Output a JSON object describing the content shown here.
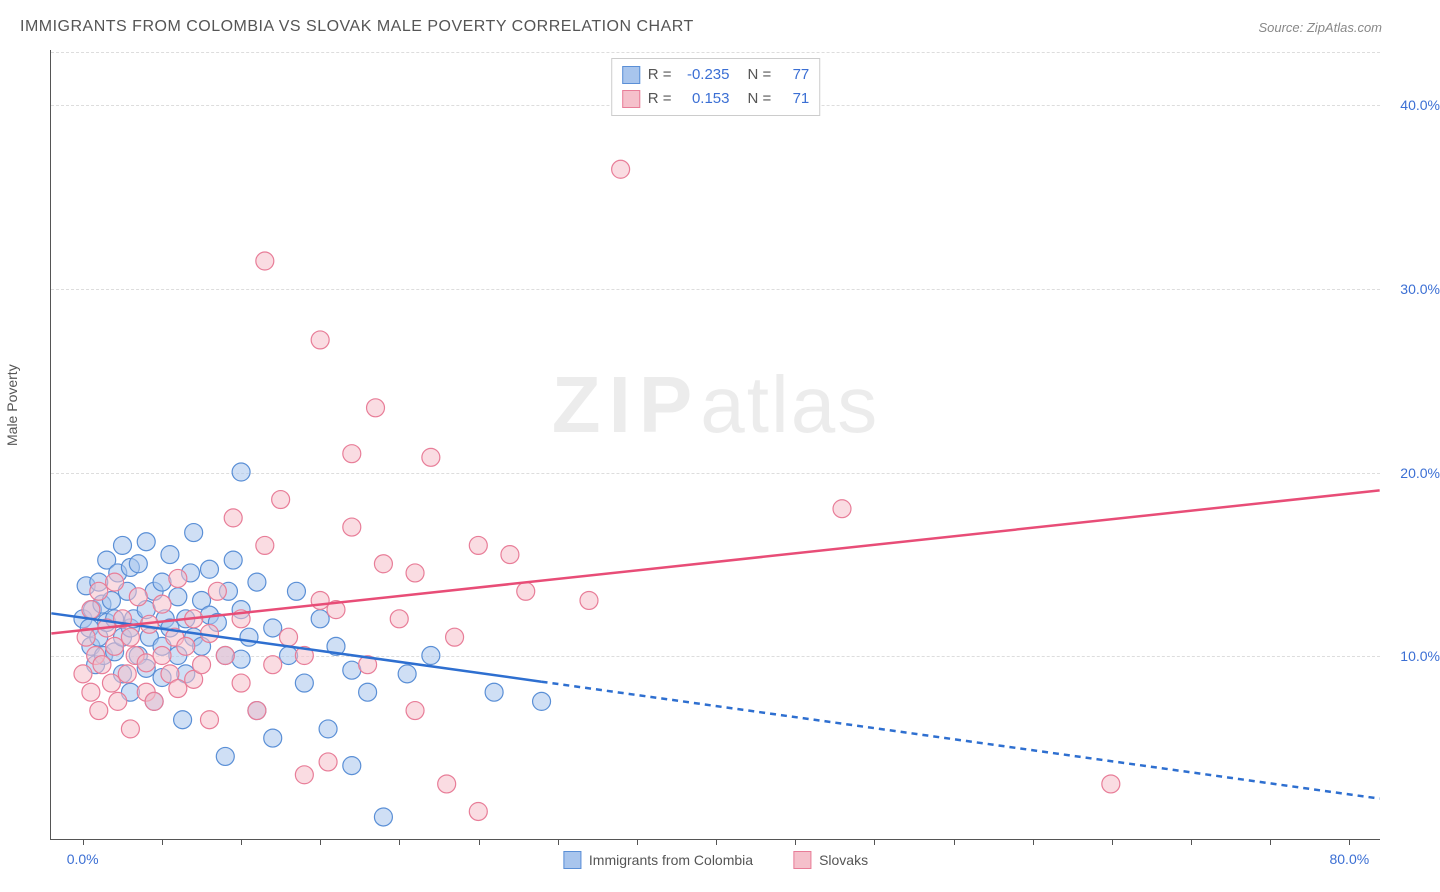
{
  "title": "IMMIGRANTS FROM COLOMBIA VS SLOVAK MALE POVERTY CORRELATION CHART",
  "source": "Source: ZipAtlas.com",
  "ylabel": "Male Poverty",
  "watermark_a": "ZIP",
  "watermark_b": "atlas",
  "chart": {
    "type": "scatter",
    "xlim": [
      -2,
      82
    ],
    "ylim": [
      0,
      43
    ],
    "xticks": [
      0,
      5,
      10,
      15,
      20,
      25,
      30,
      35,
      40,
      45,
      50,
      55,
      60,
      65,
      70,
      75,
      80
    ],
    "xtick_labels": {
      "0": "0.0%",
      "80": "80.0%"
    },
    "yticks": [
      10,
      20,
      30,
      40
    ],
    "ytick_labels": {
      "10": "10.0%",
      "20": "20.0%",
      "30": "30.0%",
      "40": "40.0%"
    },
    "background_color": "#ffffff",
    "grid_color": "#dddddd",
    "axis_color": "#555555",
    "marker_radius": 9,
    "marker_opacity": 0.55,
    "series": [
      {
        "name": "Immigrants from Colombia",
        "color_fill": "#a8c5ed",
        "color_stroke": "#5a8fd6",
        "trend": {
          "x1": -2,
          "y1": 12.3,
          "x2": 82,
          "y2": 2.2,
          "solid_until_x": 29,
          "color": "#2e6fd0",
          "width": 2.5,
          "dash": "6,5"
        },
        "points": [
          [
            0,
            12
          ],
          [
            0.2,
            13.8
          ],
          [
            0.4,
            11.5
          ],
          [
            0.5,
            10.5
          ],
          [
            0.6,
            12.5
          ],
          [
            0.8,
            9.5
          ],
          [
            1,
            14
          ],
          [
            1,
            11
          ],
          [
            1.2,
            12.8
          ],
          [
            1.3,
            10
          ],
          [
            1.5,
            11.8
          ],
          [
            1.5,
            15.2
          ],
          [
            1.8,
            13
          ],
          [
            2,
            10.2
          ],
          [
            2,
            12
          ],
          [
            2.2,
            14.5
          ],
          [
            2.5,
            9
          ],
          [
            2.5,
            11
          ],
          [
            2.5,
            16
          ],
          [
            2.8,
            13.5
          ],
          [
            3,
            8
          ],
          [
            3,
            11.5
          ],
          [
            3,
            14.8
          ],
          [
            3.2,
            12
          ],
          [
            3.5,
            10
          ],
          [
            3.5,
            15
          ],
          [
            4,
            9.3
          ],
          [
            4,
            12.5
          ],
          [
            4,
            16.2
          ],
          [
            4.2,
            11
          ],
          [
            4.5,
            7.5
          ],
          [
            4.5,
            13.5
          ],
          [
            5,
            8.8
          ],
          [
            5,
            10.5
          ],
          [
            5,
            14
          ],
          [
            5.2,
            12
          ],
          [
            5.5,
            11.5
          ],
          [
            5.5,
            15.5
          ],
          [
            6,
            10
          ],
          [
            6,
            13.2
          ],
          [
            6.3,
            6.5
          ],
          [
            6.5,
            9
          ],
          [
            6.5,
            12
          ],
          [
            6.8,
            14.5
          ],
          [
            7,
            11
          ],
          [
            7,
            16.7
          ],
          [
            7.5,
            10.5
          ],
          [
            7.5,
            13
          ],
          [
            8,
            12.2
          ],
          [
            8,
            14.7
          ],
          [
            8.5,
            11.8
          ],
          [
            9,
            4.5
          ],
          [
            9,
            10
          ],
          [
            9.2,
            13.5
          ],
          [
            9.5,
            15.2
          ],
          [
            10,
            9.8
          ],
          [
            10,
            12.5
          ],
          [
            10,
            20
          ],
          [
            10.5,
            11
          ],
          [
            11,
            7
          ],
          [
            11,
            14
          ],
          [
            12,
            5.5
          ],
          [
            12,
            11.5
          ],
          [
            13,
            10
          ],
          [
            13.5,
            13.5
          ],
          [
            14,
            8.5
          ],
          [
            15,
            12
          ],
          [
            15.5,
            6
          ],
          [
            16,
            10.5
          ],
          [
            17,
            4
          ],
          [
            17,
            9.2
          ],
          [
            18,
            8
          ],
          [
            19,
            1.2
          ],
          [
            20.5,
            9
          ],
          [
            22,
            10
          ],
          [
            26,
            8
          ],
          [
            29,
            7.5
          ]
        ]
      },
      {
        "name": "Slovaks",
        "color_fill": "#f5c0cb",
        "color_stroke": "#e87d98",
        "trend": {
          "x1": -2,
          "y1": 11.2,
          "x2": 82,
          "y2": 19.0,
          "solid_until_x": 82,
          "color": "#e84d77",
          "width": 2.5,
          "dash": ""
        },
        "points": [
          [
            0,
            9
          ],
          [
            0.2,
            11
          ],
          [
            0.5,
            8
          ],
          [
            0.5,
            12.5
          ],
          [
            0.8,
            10
          ],
          [
            1,
            7
          ],
          [
            1,
            13.5
          ],
          [
            1.2,
            9.5
          ],
          [
            1.5,
            11.5
          ],
          [
            1.8,
            8.5
          ],
          [
            2,
            10.5
          ],
          [
            2,
            14
          ],
          [
            2.2,
            7.5
          ],
          [
            2.5,
            12
          ],
          [
            2.8,
            9
          ],
          [
            3,
            6
          ],
          [
            3,
            11
          ],
          [
            3.3,
            10
          ],
          [
            3.5,
            13.2
          ],
          [
            4,
            8
          ],
          [
            4,
            9.6
          ],
          [
            4.2,
            11.7
          ],
          [
            4.5,
            7.5
          ],
          [
            5,
            10
          ],
          [
            5,
            12.8
          ],
          [
            5.5,
            9
          ],
          [
            5.8,
            11
          ],
          [
            6,
            8.2
          ],
          [
            6,
            14.2
          ],
          [
            6.5,
            10.5
          ],
          [
            7,
            8.7
          ],
          [
            7,
            12
          ],
          [
            7.5,
            9.5
          ],
          [
            8,
            6.5
          ],
          [
            8,
            11.2
          ],
          [
            8.5,
            13.5
          ],
          [
            9,
            10
          ],
          [
            9.5,
            17.5
          ],
          [
            10,
            8.5
          ],
          [
            10,
            12
          ],
          [
            11,
            7
          ],
          [
            11.5,
            16
          ],
          [
            11.5,
            31.5
          ],
          [
            12,
            9.5
          ],
          [
            12.5,
            18.5
          ],
          [
            13,
            11
          ],
          [
            14,
            3.5
          ],
          [
            14,
            10
          ],
          [
            15,
            13
          ],
          [
            15,
            27.2
          ],
          [
            15.5,
            4.2
          ],
          [
            16,
            12.5
          ],
          [
            17,
            17
          ],
          [
            17,
            21
          ],
          [
            18,
            9.5
          ],
          [
            18.5,
            23.5
          ],
          [
            19,
            15
          ],
          [
            20,
            12
          ],
          [
            21,
            7
          ],
          [
            21,
            14.5
          ],
          [
            22,
            20.8
          ],
          [
            23,
            3
          ],
          [
            23.5,
            11
          ],
          [
            25,
            16
          ],
          [
            25,
            1.5
          ],
          [
            27,
            15.5
          ],
          [
            28,
            13.5
          ],
          [
            32,
            13
          ],
          [
            34,
            36.5
          ],
          [
            48,
            18
          ],
          [
            65,
            3
          ]
        ]
      }
    ],
    "stats": [
      {
        "series": 0,
        "R": "-0.235",
        "N": "77"
      },
      {
        "series": 1,
        "R": "0.153",
        "N": "71"
      }
    ]
  },
  "labels": {
    "R": "R =",
    "N": "N ="
  }
}
